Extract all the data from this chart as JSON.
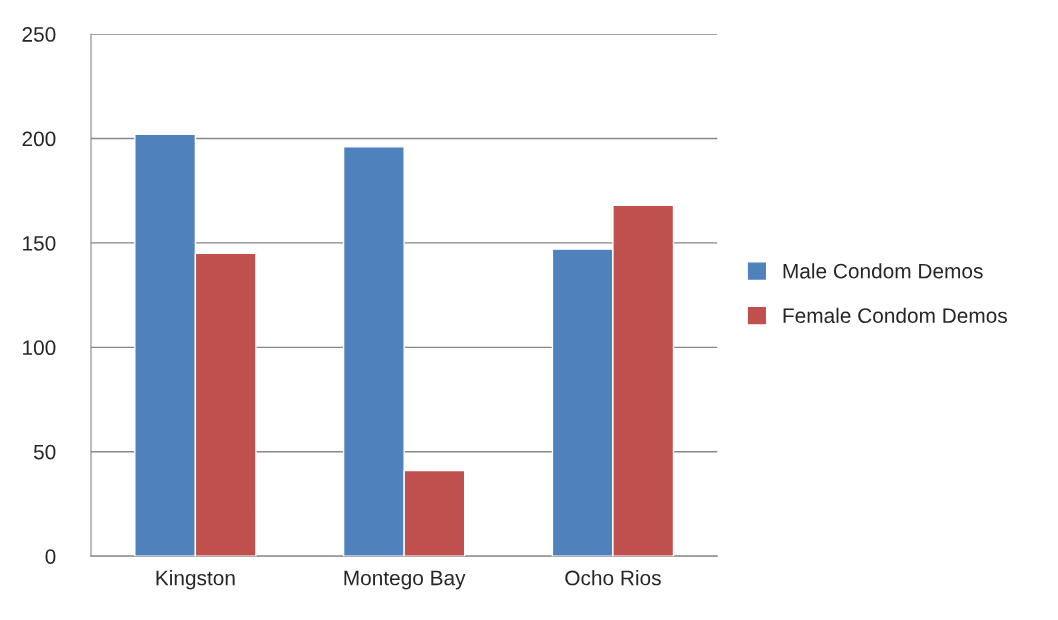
{
  "chart_data": {
    "type": "bar",
    "categories": [
      "Kingston",
      "Montego Bay",
      "Ocho Rios"
    ],
    "series": [
      {
        "name": "Male Condom Demos",
        "color": "#4f81bd",
        "values": [
          202,
          196,
          147
        ]
      },
      {
        "name": "Female Condom Demos",
        "color": "#c0504d",
        "values": [
          145,
          41,
          168
        ]
      }
    ],
    "ylim": [
      0,
      250
    ],
    "yticks": [
      0,
      50,
      100,
      150,
      200,
      250
    ],
    "grid": "y",
    "legend": "right"
  }
}
